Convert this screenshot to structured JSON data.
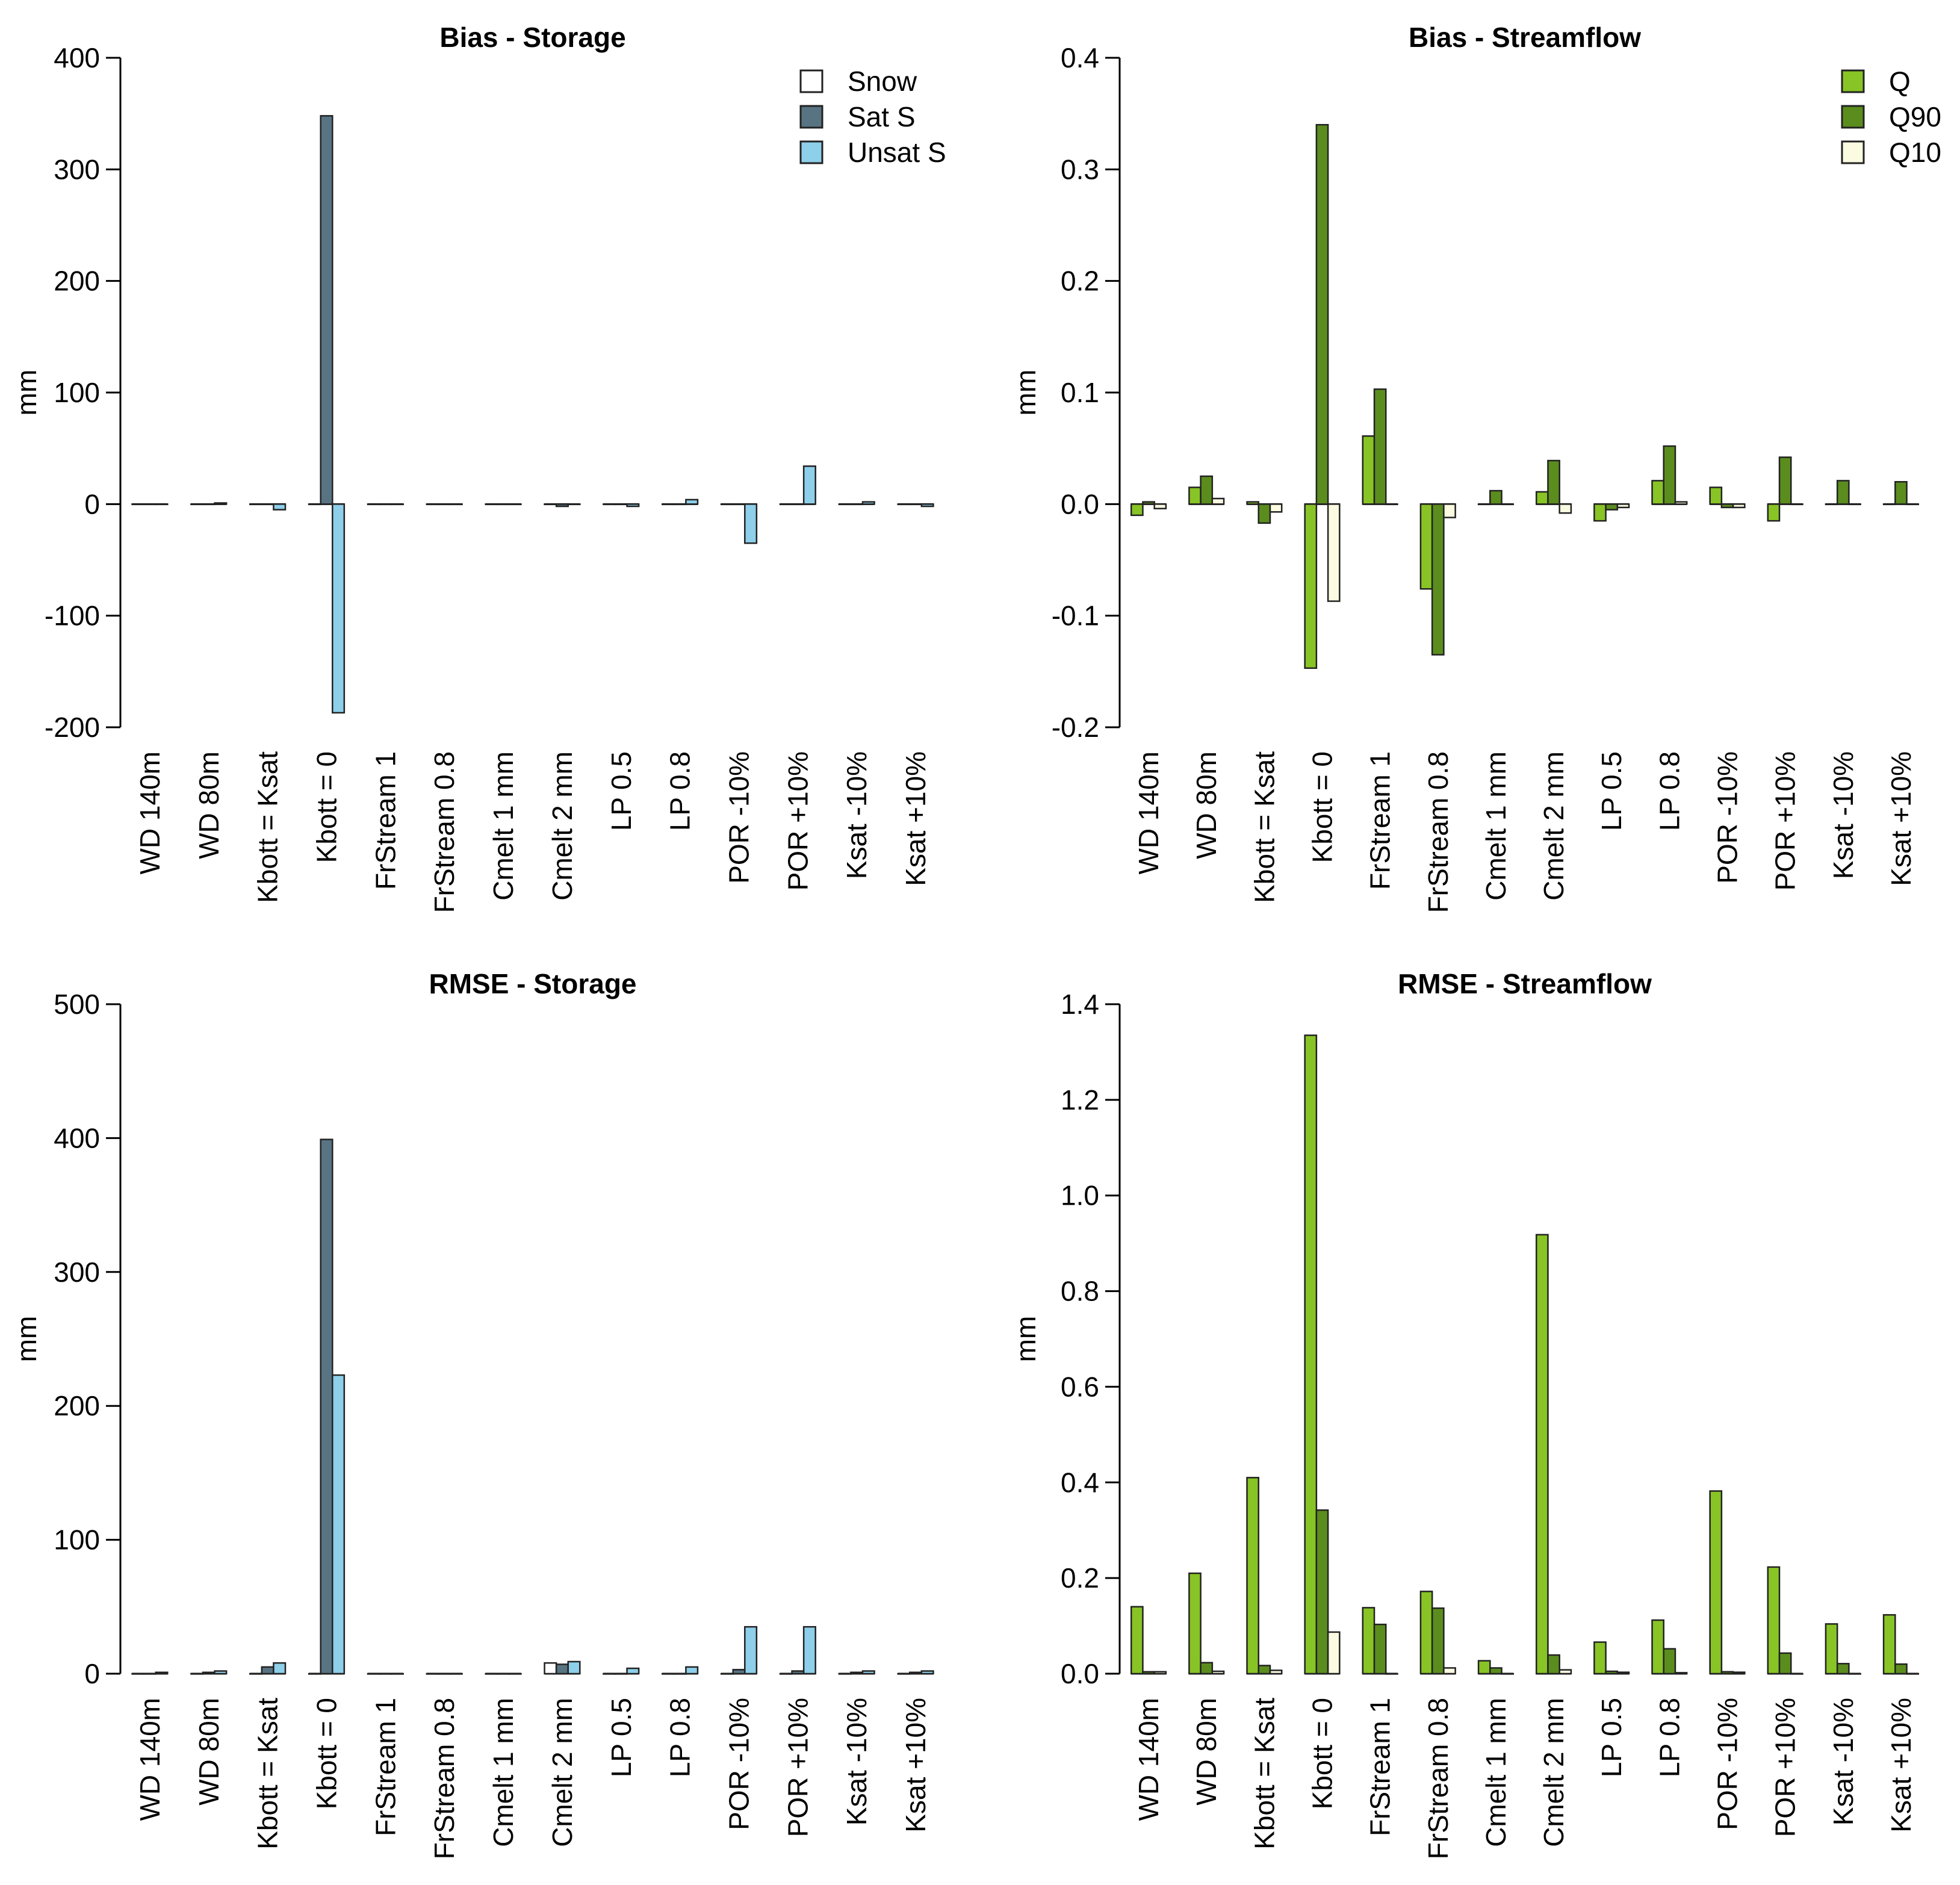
{
  "chart_data": [
    {
      "type": "bar",
      "title": "Bias - Storage",
      "ylabel": "mm",
      "xlabel": "",
      "ylim": [
        -200,
        400
      ],
      "yticks": [
        400,
        300,
        200,
        100,
        0,
        -100,
        -200
      ],
      "ytick_labels": [
        "400",
        "300",
        "200",
        "100",
        "0",
        "-100",
        "-200"
      ],
      "categories": [
        "WD 140m",
        "WD 80m",
        "Kbott = Ksat",
        "Kbott = 0",
        "FrStream 1",
        "FrStream 0.8",
        "Cmelt 1 mm",
        "Cmelt 2 mm",
        "LP 0.5",
        "LP 0.8",
        "POR -10%",
        "POR +10%",
        "Ksat -10%",
        "Ksat +10%"
      ],
      "series": [
        {
          "name": "Snow",
          "color": "#ffffff",
          "values": [
            0,
            0,
            0,
            0,
            0,
            0,
            0,
            0,
            0,
            0,
            0,
            0,
            0,
            0
          ]
        },
        {
          "name": "Sat S",
          "color": "#587483",
          "values": [
            0,
            0,
            0,
            348,
            0,
            0,
            0,
            -2,
            0,
            0,
            0,
            0,
            0,
            0
          ]
        },
        {
          "name": "Unsat S",
          "color": "#8ecfea",
          "values": [
            0,
            1,
            -5,
            -187,
            0,
            0,
            0,
            0,
            -2,
            4,
            -35,
            34,
            2,
            -2
          ]
        }
      ],
      "legend": {
        "position": "top-right",
        "entries": [
          "Snow",
          "Sat S",
          "Unsat S"
        ]
      }
    },
    {
      "type": "bar",
      "title": "Bias - Streamflow",
      "ylabel": "mm",
      "xlabel": "",
      "ylim": [
        -0.2,
        0.4
      ],
      "yticks": [
        0.4,
        0.3,
        0.2,
        0.1,
        0.0,
        -0.1,
        -0.2
      ],
      "ytick_labels": [
        "0.4",
        "0.3",
        "0.2",
        "0.1",
        "0.0",
        "-0.1",
        "-0.2"
      ],
      "categories": [
        "WD 140m",
        "WD 80m",
        "Kbott = Ksat",
        "Kbott = 0",
        "FrStream 1",
        "FrStream 0.8",
        "Cmelt 1 mm",
        "Cmelt 2 mm",
        "LP 0.5",
        "LP 0.8",
        "POR -10%",
        "POR +10%",
        "Ksat -10%",
        "Ksat +10%"
      ],
      "series": [
        {
          "name": "Q",
          "color": "#88c425",
          "values": [
            -0.01,
            0.015,
            0.002,
            -0.147,
            0.061,
            -0.076,
            0,
            0.011,
            -0.015,
            0.021,
            0.015,
            -0.015,
            0,
            0
          ]
        },
        {
          "name": "Q90",
          "color": "#5b8d1e",
          "values": [
            0.002,
            0.025,
            -0.017,
            0.34,
            0.103,
            -0.135,
            0.012,
            0.039,
            -0.005,
            0.052,
            -0.003,
            0.042,
            0.021,
            0.02
          ]
        },
        {
          "name": "Q10",
          "color": "#fbfbe2",
          "values": [
            -0.004,
            0.005,
            -0.007,
            -0.087,
            0,
            -0.012,
            0,
            -0.008,
            -0.003,
            0.002,
            -0.003,
            0,
            0,
            0
          ]
        }
      ],
      "legend": {
        "position": "top-right",
        "entries": [
          "Q",
          "Q90",
          "Q10"
        ]
      }
    },
    {
      "type": "bar",
      "title": "RMSE - Storage",
      "ylabel": "mm",
      "xlabel": "",
      "ylim": [
        0,
        500
      ],
      "yticks": [
        500,
        400,
        300,
        200,
        100,
        0
      ],
      "ytick_labels": [
        "500",
        "400",
        "300",
        "200",
        "100",
        "0"
      ],
      "categories": [
        "WD 140m",
        "WD 80m",
        "Kbott = Ksat",
        "Kbott = 0",
        "FrStream 1",
        "FrStream 0.8",
        "Cmelt 1 mm",
        "Cmelt 2 mm",
        "LP 0.5",
        "LP 0.8",
        "POR -10%",
        "POR +10%",
        "Ksat -10%",
        "Ksat +10%"
      ],
      "series": [
        {
          "name": "Snow",
          "color": "#ffffff",
          "values": [
            0,
            0,
            0,
            0,
            0,
            0,
            0,
            8,
            0,
            0,
            0,
            0,
            0,
            0
          ]
        },
        {
          "name": "Sat S",
          "color": "#587483",
          "values": [
            0,
            1,
            5,
            399,
            0,
            0,
            0,
            7,
            0,
            0,
            3,
            2,
            1,
            1
          ]
        },
        {
          "name": "Unsat S",
          "color": "#8ecfea",
          "values": [
            1,
            2,
            8,
            223,
            0,
            0,
            0,
            9,
            4,
            5,
            35,
            35,
            2,
            2
          ]
        }
      ]
    },
    {
      "type": "bar",
      "title": "RMSE - Streamflow",
      "ylabel": "mm",
      "xlabel": "",
      "ylim": [
        0,
        1.4
      ],
      "yticks": [
        1.4,
        1.2,
        1.0,
        0.8,
        0.6,
        0.4,
        0.2,
        0.0
      ],
      "ytick_labels": [
        "1.4",
        "1.2",
        "1.0",
        "0.8",
        "0.6",
        "0.4",
        "0.2",
        "0.0"
      ],
      "categories": [
        "WD 140m",
        "WD 80m",
        "Kbott = Ksat",
        "Kbott = 0",
        "FrStream 1",
        "FrStream 0.8",
        "Cmelt 1 mm",
        "Cmelt 2 mm",
        "LP 0.5",
        "LP 0.8",
        "POR -10%",
        "POR +10%",
        "Ksat -10%",
        "Ksat +10%"
      ],
      "series": [
        {
          "name": "Q",
          "color": "#88c425",
          "values": [
            0.14,
            0.21,
            0.41,
            1.335,
            0.138,
            0.172,
            0.027,
            0.918,
            0.066,
            0.112,
            0.382,
            0.223,
            0.104,
            0.123
          ]
        },
        {
          "name": "Q90",
          "color": "#5b8d1e",
          "values": [
            0.004,
            0.023,
            0.017,
            0.342,
            0.103,
            0.137,
            0.012,
            0.039,
            0.005,
            0.052,
            0.004,
            0.043,
            0.021,
            0.02
          ]
        },
        {
          "name": "Q10",
          "color": "#fbfbe2",
          "values": [
            0.004,
            0.005,
            0.007,
            0.087,
            0,
            0.012,
            0,
            0.008,
            0.003,
            0.002,
            0.003,
            0,
            0,
            0
          ]
        }
      ]
    }
  ]
}
